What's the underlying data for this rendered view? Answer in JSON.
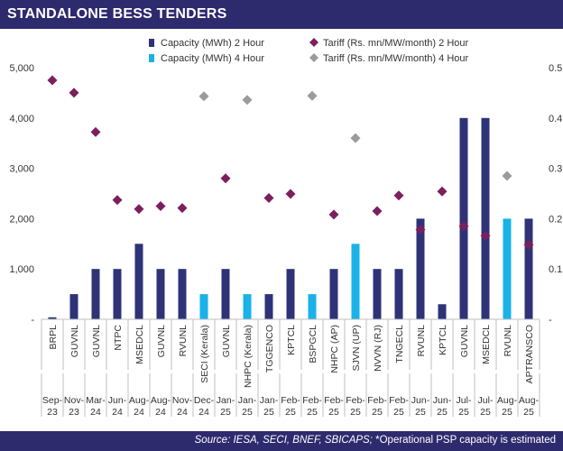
{
  "header": {
    "title": "STANDALONE BESS TENDERS"
  },
  "footer": {
    "source": "Source: IESA, SECI, BNEF, SBICAPS;",
    "note": "*Operational PSP capacity is estimated"
  },
  "colors": {
    "header_bg": "#2d2a6e",
    "cap2": "#2e3377",
    "cap4": "#1ab2e8",
    "tar2": "#7b1f5e",
    "tar4": "#9b9b9b",
    "axis": "#bfbfbf",
    "text": "#333333"
  },
  "chart_data": {
    "type": "bar",
    "legend": [
      {
        "label": "Capacity (MWh)  2 Hour",
        "kind": "bar",
        "color": "#2e3377"
      },
      {
        "label": "Capacity (MWh)  4 Hour",
        "kind": "bar",
        "color": "#1ab2e8"
      },
      {
        "label": "Tariff (Rs. mn/MW/month)  2 Hour",
        "kind": "diamond",
        "color": "#7b1f5e"
      },
      {
        "label": "Tariff (Rs. mn/MW/month)  4 Hour",
        "kind": "diamond",
        "color": "#9b9b9b"
      }
    ],
    "categories": [
      "BRPL",
      "GUVNL",
      "GUVNL",
      "NTPC",
      "MSEDCL",
      "GUVNL",
      "RVUNL",
      "SECI (Kerala)",
      "GUVNL",
      "NHPC (Kerala)",
      "TGGENCO",
      "KPTCL",
      "BSPGCL",
      "NHPC (AP)",
      "SJVN (UP)",
      "NVVN (RJ)",
      "TNGECL",
      "RVUNL",
      "KPTCL",
      "GUVNL",
      "MSEDCL",
      "RVUNL",
      "APTRANSCO"
    ],
    "dates": [
      [
        "Sep-",
        "23"
      ],
      [
        "Nov-",
        "23"
      ],
      [
        "Mar-",
        "24"
      ],
      [
        "Jun-",
        "24"
      ],
      [
        "Aug-",
        "24"
      ],
      [
        "Aug-",
        "24"
      ],
      [
        "Nov-",
        "24"
      ],
      [
        "Dec-",
        "24"
      ],
      [
        "Jan-",
        "25"
      ],
      [
        "Jan-",
        "25"
      ],
      [
        "Jan-",
        "25"
      ],
      [
        "Feb-",
        "25"
      ],
      [
        "Feb-",
        "25"
      ],
      [
        "Feb-",
        "25"
      ],
      [
        "Feb-",
        "25"
      ],
      [
        "Feb-",
        "25"
      ],
      [
        "Feb-",
        "25"
      ],
      [
        "Jun-",
        "25"
      ],
      [
        "Jun-",
        "25"
      ],
      [
        "Jul-",
        "25"
      ],
      [
        "Jul-",
        "25"
      ],
      [
        "Aug-",
        "25"
      ],
      [
        "Aug-",
        "25"
      ]
    ],
    "series": [
      {
        "name": "Capacity (MWh) 2 Hour",
        "axis": "left",
        "values": [
          40,
          500,
          1000,
          1000,
          1500,
          1000,
          1000,
          null,
          1000,
          null,
          500,
          1000,
          null,
          1000,
          null,
          1000,
          1000,
          2000,
          300,
          4000,
          4000,
          null,
          2000
        ]
      },
      {
        "name": "Capacity (MWh) 4 Hour",
        "axis": "left",
        "values": [
          null,
          null,
          null,
          null,
          null,
          null,
          null,
          500,
          null,
          500,
          null,
          null,
          500,
          null,
          1500,
          null,
          null,
          null,
          null,
          null,
          null,
          2000,
          null
        ]
      },
      {
        "name": "Tariff (Rs. mn/MW/month) 2 Hour",
        "axis": "right",
        "values": [
          0.475,
          0.45,
          0.372,
          0.237,
          0.219,
          0.225,
          0.221,
          null,
          0.28,
          null,
          0.241,
          0.249,
          null,
          0.208,
          null,
          0.215,
          0.246,
          0.178,
          0.254,
          0.185,
          0.166,
          null,
          0.148
        ]
      },
      {
        "name": "Tariff (Rs. mn/MW/month) 4 Hour",
        "axis": "right",
        "values": [
          null,
          null,
          null,
          null,
          null,
          null,
          null,
          0.443,
          null,
          0.436,
          null,
          null,
          0.444,
          null,
          0.36,
          null,
          null,
          null,
          null,
          null,
          null,
          0.285,
          null
        ]
      }
    ],
    "y_left": {
      "range": [
        0,
        5000
      ],
      "ticks": [
        "-",
        "1,000",
        "2,000",
        "3,000",
        "4,000",
        "5,000"
      ]
    },
    "y_right": {
      "range": [
        0,
        0.5
      ],
      "ticks": [
        "-",
        "0.1",
        "0.2",
        "0.3",
        "0.4",
        "0.5"
      ]
    },
    "grid": false,
    "legend_position": "top"
  }
}
